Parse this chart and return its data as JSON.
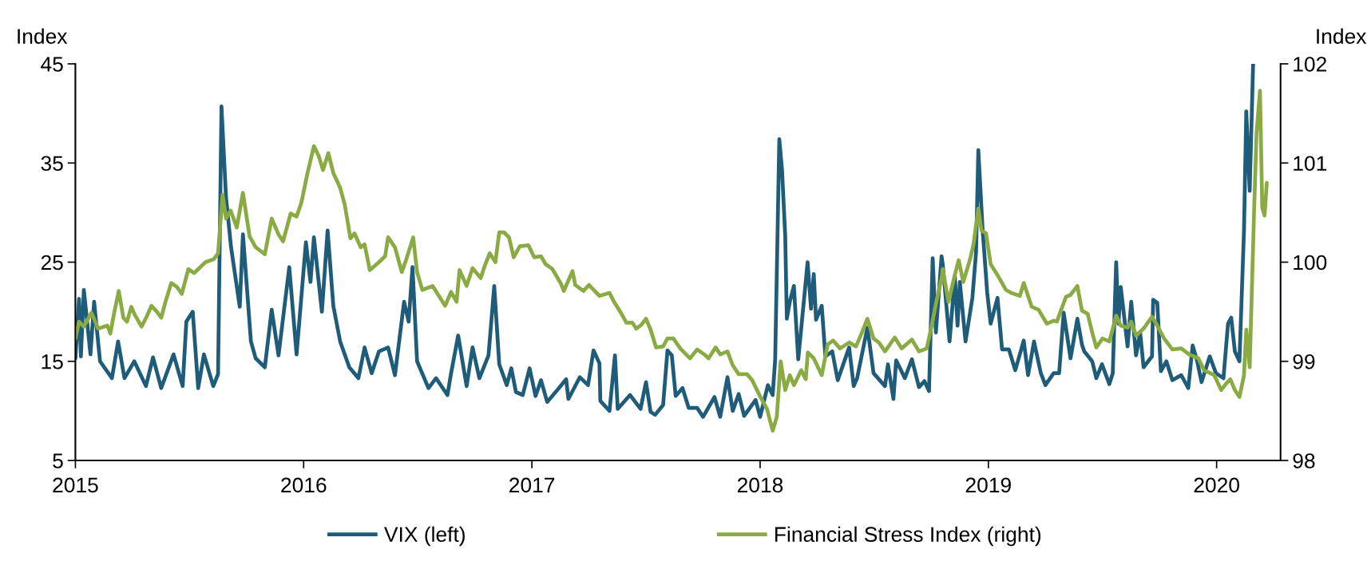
{
  "chart_data": {
    "type": "line",
    "ylabel": "Index",
    "y2label": "Index",
    "xlim": [
      2015,
      2020.28
    ],
    "xticks": [
      2015,
      2016,
      2017,
      2018,
      2019,
      2020
    ],
    "ylim": [
      5,
      45
    ],
    "yticks": [
      5,
      15,
      25,
      35,
      45
    ],
    "y2lim": [
      98,
      102
    ],
    "y2ticks": [
      98,
      99,
      100,
      101,
      102
    ],
    "grid": false,
    "legend": "bottom",
    "line_style": "solid",
    "marker": "none",
    "series": [
      {
        "name": "VIX (left)",
        "color": "#1f5c7a",
        "x": [
          2015.0,
          2015.016,
          2015.024,
          2015.037,
          2015.066,
          2015.082,
          2015.108,
          2015.16,
          2015.187,
          2015.215,
          2015.258,
          2015.309,
          2015.34,
          2015.376,
          2015.43,
          2015.47,
          2015.486,
          2015.514,
          2015.538,
          2015.563,
          2015.604,
          2015.625,
          2015.64,
          2015.66,
          2015.682,
          2015.72,
          2015.734,
          2015.769,
          2015.79,
          2015.83,
          2015.86,
          2015.89,
          2015.937,
          2015.969,
          2016.01,
          2016.03,
          2016.045,
          2016.08,
          2016.105,
          2016.13,
          2016.16,
          2016.2,
          2016.24,
          2016.267,
          2016.298,
          2016.33,
          2016.37,
          2016.4,
          2016.44,
          2016.46,
          2016.477,
          2016.497,
          2016.547,
          2016.58,
          2016.63,
          2016.646,
          2016.677,
          2016.714,
          2016.74,
          2016.77,
          2016.81,
          2016.835,
          2016.857,
          2016.89,
          2016.91,
          2016.93,
          2016.96,
          2016.99,
          2017.016,
          2017.04,
          2017.067,
          2017.115,
          2017.15,
          2017.16,
          2017.21,
          2017.246,
          2017.27,
          2017.296,
          2017.3,
          2017.34,
          2017.364,
          2017.376,
          2017.43,
          2017.476,
          2017.5,
          2017.52,
          2017.54,
          2017.575,
          2017.594,
          2017.613,
          2017.63,
          2017.66,
          2017.687,
          2017.724,
          2017.75,
          2017.8,
          2017.825,
          2017.857,
          2017.88,
          2017.906,
          2017.93,
          2017.98,
          2018.0,
          2018.034,
          2018.055,
          2018.066,
          2018.084,
          2018.096,
          2018.11,
          2018.117,
          2018.13,
          2018.148,
          2018.167,
          2018.208,
          2018.223,
          2018.235,
          2018.245,
          2018.27,
          2018.286,
          2018.316,
          2018.34,
          2018.39,
          2018.41,
          2018.425,
          2018.47,
          2018.497,
          2018.547,
          2018.56,
          2018.584,
          2018.596,
          2018.634,
          2018.665,
          2018.696,
          2018.72,
          2018.74,
          2018.756,
          2018.77,
          2018.795,
          2018.8,
          2018.83,
          2018.853,
          2018.865,
          2018.875,
          2018.9,
          2018.93,
          2018.946,
          2018.956,
          2018.975,
          2018.995,
          2019.01,
          2019.04,
          2019.06,
          2019.09,
          2019.118,
          2019.155,
          2019.174,
          2019.2,
          2019.23,
          2019.25,
          2019.286,
          2019.31,
          2019.33,
          2019.36,
          2019.39,
          2019.41,
          2019.42,
          2019.455,
          2019.473,
          2019.498,
          2019.53,
          2019.545,
          2019.56,
          2019.57,
          2019.58,
          2019.61,
          2019.626,
          2019.647,
          2019.665,
          2019.68,
          2019.717,
          2019.722,
          2019.74,
          2019.756,
          2019.78,
          2019.806,
          2019.845,
          2019.876,
          2019.895,
          2019.915,
          2019.934,
          2019.97,
          2019.997,
          2020.03,
          2020.05,
          2020.064,
          2020.08,
          2020.1,
          2020.12,
          2020.13,
          2020.145,
          2020.16
        ],
        "values": [
          15.3,
          21.3,
          15.5,
          22.2,
          15.7,
          21,
          15,
          13.3,
          17,
          13.3,
          15,
          12.5,
          15.4,
          12.3,
          15.7,
          12.5,
          19,
          20,
          12.3,
          15.7,
          12.5,
          13.7,
          40.7,
          31.5,
          26.5,
          20.5,
          27.8,
          17,
          15.3,
          14.4,
          20.2,
          15.6,
          24.5,
          15.7,
          27,
          23,
          27.5,
          20,
          28.2,
          20.6,
          17,
          14.4,
          13.3,
          16.4,
          13.8,
          16,
          16.4,
          13.6,
          21,
          19,
          24.5,
          15,
          12.3,
          13.3,
          11.6,
          13.8,
          17.6,
          12.5,
          16.4,
          13.3,
          15.6,
          22.6,
          14.7,
          12.6,
          14.3,
          11.9,
          11.6,
          14.3,
          11.5,
          13.1,
          10.9,
          12.2,
          13.2,
          11.2,
          13.4,
          12.6,
          16.1,
          14.8,
          11,
          10,
          15.6,
          10.2,
          11.6,
          10.2,
          12.9,
          9.9,
          9.6,
          10.6,
          16.1,
          15.6,
          11.5,
          12.3,
          10.3,
          10.3,
          9.4,
          11.4,
          9.4,
          13.4,
          10,
          11.7,
          9.5,
          11.1,
          9.4,
          12.6,
          11.6,
          15.2,
          37.4,
          34.3,
          27.6,
          19.3,
          21,
          22.6,
          15.2,
          25,
          20.3,
          23.8,
          19.2,
          20.6,
          15.5,
          16,
          13.1,
          16.4,
          12.5,
          13.3,
          18.4,
          13.8,
          12.5,
          14.7,
          11.2,
          15.1,
          13.3,
          15.2,
          12.4,
          13,
          12,
          25.4,
          17.9,
          25.6,
          24.8,
          17,
          23.6,
          18.6,
          23,
          17,
          21.4,
          26,
          36.3,
          28.2,
          21.9,
          18.8,
          21.4,
          16.2,
          16.2,
          14.1,
          17.1,
          13.6,
          17,
          13.8,
          12.6,
          13.8,
          13.8,
          19.9,
          15.3,
          19.3,
          16.7,
          16,
          15,
          13.3,
          14.7,
          12.7,
          13.8,
          25,
          18.8,
          22.5,
          16.5,
          21,
          15.6,
          17.9,
          14.4,
          15.5,
          21.2,
          20.9,
          14,
          15,
          13.1,
          13.6,
          12.3,
          16.6,
          15,
          12.9,
          15.5,
          13.8,
          13.3,
          18.8,
          19.4,
          16,
          15,
          28.2,
          40.2,
          32.2,
          45
        ]
      },
      {
        "name": "Financial Stress Index (right)",
        "color": "#8aab44",
        "axis": "y2",
        "x": [
          2015.0,
          2015.016,
          2015.037,
          2015.07,
          2015.1,
          2015.14,
          2015.153,
          2015.17,
          2015.19,
          2015.21,
          2015.226,
          2015.245,
          2015.26,
          2015.29,
          2015.31,
          2015.333,
          2015.357,
          2015.376,
          2015.396,
          2015.42,
          2015.445,
          2015.466,
          2015.495,
          2015.52,
          2015.547,
          2015.57,
          2015.606,
          2015.625,
          2015.645,
          2015.66,
          2015.68,
          2015.707,
          2015.734,
          2015.763,
          2015.79,
          2015.83,
          2015.86,
          2015.89,
          2015.91,
          2015.943,
          2015.969,
          2015.99,
          2016.017,
          2016.045,
          2016.066,
          2016.085,
          2016.108,
          2016.13,
          2016.16,
          2016.18,
          2016.205,
          2016.223,
          2016.25,
          2016.267,
          2016.29,
          2016.33,
          2016.357,
          2016.37,
          2016.4,
          2016.43,
          2016.45,
          2016.48,
          2016.497,
          2016.52,
          2016.565,
          2016.62,
          2016.646,
          2016.67,
          2016.683,
          2016.714,
          2016.74,
          2016.776,
          2016.79,
          2016.815,
          2016.84,
          2016.857,
          2016.878,
          2016.9,
          2016.92,
          2016.947,
          2016.985,
          2017.01,
          2017.04,
          2017.06,
          2017.09,
          2017.128,
          2017.14,
          2017.178,
          2017.19,
          2017.226,
          2017.25,
          2017.296,
          2017.34,
          2017.36,
          2017.39,
          2017.414,
          2017.44,
          2017.457,
          2017.48,
          2017.5,
          2017.52,
          2017.544,
          2017.575,
          2017.594,
          2017.62,
          2017.65,
          2017.693,
          2017.724,
          2017.755,
          2017.774,
          2017.805,
          2017.825,
          2017.857,
          2017.88,
          2017.906,
          2017.943,
          2017.965,
          2017.999,
          2018.03,
          2018.055,
          2018.073,
          2018.09,
          2018.11,
          2018.13,
          2018.148,
          2018.18,
          2018.2,
          2018.209,
          2018.235,
          2018.27,
          2018.296,
          2018.32,
          2018.35,
          2018.39,
          2018.42,
          2018.446,
          2018.47,
          2018.497,
          2018.52,
          2018.547,
          2018.59,
          2018.62,
          2018.665,
          2018.696,
          2018.73,
          2018.75,
          2018.77,
          2018.795,
          2018.8,
          2018.825,
          2018.853,
          2018.87,
          2018.89,
          2018.92,
          2018.935,
          2018.956,
          2018.97,
          2018.99,
          2019.01,
          2019.04,
          2019.077,
          2019.1,
          2019.138,
          2019.155,
          2019.19,
          2019.22,
          2019.256,
          2019.286,
          2019.3,
          2019.34,
          2019.36,
          2019.39,
          2019.41,
          2019.435,
          2019.455,
          2019.473,
          2019.5,
          2019.53,
          2019.56,
          2019.58,
          2019.61,
          2019.626,
          2019.647,
          2019.68,
          2019.717,
          2019.74,
          2019.77,
          2019.806,
          2019.845,
          2019.88,
          2019.92,
          2019.945,
          2019.99,
          2020.02,
          2020.04,
          2020.06,
          2020.08,
          2020.1,
          2020.12,
          2020.13,
          2020.145,
          2020.164,
          2020.175,
          2020.19,
          2020.2,
          2020.21,
          2020.22
        ],
        "values": [
          99.23,
          99.4,
          99.35,
          99.49,
          99.33,
          99.36,
          99.28,
          99.49,
          99.71,
          99.44,
          99.4,
          99.55,
          99.47,
          99.35,
          99.44,
          99.56,
          99.5,
          99.44,
          99.61,
          99.79,
          99.75,
          99.68,
          99.93,
          99.89,
          99.95,
          100.0,
          100.03,
          100.09,
          100.68,
          100.44,
          100.52,
          100.35,
          100.7,
          100.26,
          100.15,
          100.08,
          100.44,
          100.28,
          100.21,
          100.49,
          100.46,
          100.6,
          100.9,
          101.17,
          101.07,
          100.93,
          101.1,
          100.9,
          100.75,
          100.58,
          100.24,
          100.29,
          100.15,
          100.18,
          99.92,
          100.0,
          100.06,
          100.25,
          100.15,
          99.9,
          100.03,
          100.25,
          99.9,
          99.72,
          99.76,
          99.56,
          99.7,
          99.6,
          99.92,
          99.76,
          99.94,
          99.84,
          99.94,
          100.09,
          100.0,
          100.3,
          100.3,
          100.25,
          100.05,
          100.16,
          100.17,
          100.05,
          100.06,
          99.98,
          99.93,
          99.78,
          99.71,
          99.91,
          99.77,
          99.71,
          99.77,
          99.66,
          99.69,
          99.6,
          99.49,
          99.39,
          99.39,
          99.33,
          99.37,
          99.43,
          99.32,
          99.14,
          99.15,
          99.23,
          99.23,
          99.13,
          99.03,
          99.12,
          99.07,
          99.03,
          99.14,
          99.07,
          99.1,
          98.96,
          98.87,
          98.87,
          98.81,
          98.65,
          98.52,
          98.3,
          98.44,
          99.0,
          98.71,
          98.86,
          98.76,
          98.91,
          98.82,
          99.09,
          99.03,
          98.86,
          99.17,
          99.21,
          99.13,
          99.19,
          99.15,
          99.29,
          99.43,
          99.23,
          99.19,
          99.1,
          99.24,
          99.13,
          99.22,
          99.1,
          99.13,
          99.34,
          99.58,
          99.84,
          99.93,
          99.6,
          99.87,
          100.02,
          99.8,
          100.03,
          100.18,
          100.54,
          100.32,
          100.29,
          99.98,
          99.87,
          99.72,
          99.69,
          99.66,
          99.79,
          99.55,
          99.52,
          99.38,
          99.41,
          99.4,
          99.65,
          99.67,
          99.76,
          99.51,
          99.48,
          99.29,
          99.14,
          99.23,
          99.2,
          99.46,
          99.36,
          99.34,
          99.4,
          99.26,
          99.33,
          99.45,
          99.36,
          99.23,
          99.12,
          99.13,
          99.07,
          99.03,
          98.91,
          98.86,
          98.71,
          98.77,
          98.82,
          98.71,
          98.64,
          98.86,
          99.32,
          98.94,
          100.5,
          101.3,
          101.73,
          100.55,
          100.47,
          100.8
        ]
      }
    ]
  }
}
